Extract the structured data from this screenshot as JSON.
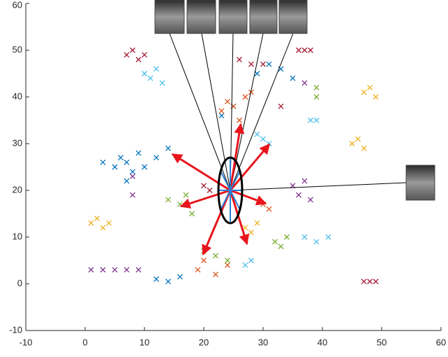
{
  "chart_data": {
    "type": "scatter",
    "xlim": [
      -10,
      60
    ],
    "ylim": [
      -10,
      60
    ],
    "xticks": [
      -10,
      0,
      10,
      20,
      30,
      40,
      50,
      60
    ],
    "yticks": [
      -10,
      0,
      10,
      20,
      30,
      40,
      50,
      60
    ],
    "grid": false,
    "series": [
      {
        "color": "#0072bd",
        "x": [
          3,
          5,
          6,
          7,
          8,
          9,
          10,
          12,
          14,
          7,
          29,
          31,
          33,
          35,
          12,
          14,
          16,
          23,
          25
        ],
        "y": [
          26,
          25,
          27,
          26,
          24,
          28,
          25,
          27,
          29,
          22,
          45,
          47,
          46,
          44,
          1,
          0.5,
          1.5,
          36,
          38
        ]
      },
      {
        "color": "#d95319",
        "x": [
          23,
          24,
          25,
          27,
          28,
          26,
          19,
          20,
          22,
          24,
          30,
          31
        ],
        "y": [
          37,
          39,
          38,
          40,
          41,
          35,
          3,
          5,
          2,
          4,
          17,
          16
        ]
      },
      {
        "color": "#edb120",
        "x": [
          1,
          2,
          3,
          4,
          47,
          48,
          49,
          45,
          46,
          47,
          27,
          28,
          29
        ],
        "y": [
          13,
          14,
          12,
          13,
          41,
          42,
          40,
          30,
          31,
          29,
          12,
          11,
          13
        ]
      },
      {
        "color": "#7e2f8e",
        "x": [
          1,
          3,
          5,
          7,
          9,
          35,
          36,
          37,
          38,
          37,
          8,
          8
        ],
        "y": [
          3,
          3,
          3,
          3,
          3,
          21,
          19,
          22,
          18,
          43,
          23,
          19
        ]
      },
      {
        "color": "#77ac30",
        "x": [
          14,
          16,
          17,
          18,
          32,
          33,
          34,
          39,
          39,
          20,
          22,
          24
        ],
        "y": [
          18,
          17,
          19,
          15,
          9,
          8,
          10,
          42,
          40,
          7,
          6,
          5
        ]
      },
      {
        "color": "#4dbeee",
        "x": [
          10,
          11,
          12,
          13,
          29,
          30,
          31,
          27,
          28,
          37,
          39,
          41,
          38,
          39
        ],
        "y": [
          45,
          44,
          46,
          43,
          32,
          31,
          30,
          4,
          5,
          10,
          9,
          10,
          35,
          35
        ]
      },
      {
        "color": "#a2142f",
        "x": [
          7,
          8,
          9,
          10,
          26,
          28,
          30,
          36,
          37,
          38,
          47,
          48,
          49,
          20,
          21,
          33
        ],
        "y": [
          49,
          50,
          48,
          49,
          48,
          47,
          47,
          50,
          50,
          50,
          0.5,
          0.5,
          0.5,
          21,
          20,
          38
        ]
      }
    ]
  }
}
